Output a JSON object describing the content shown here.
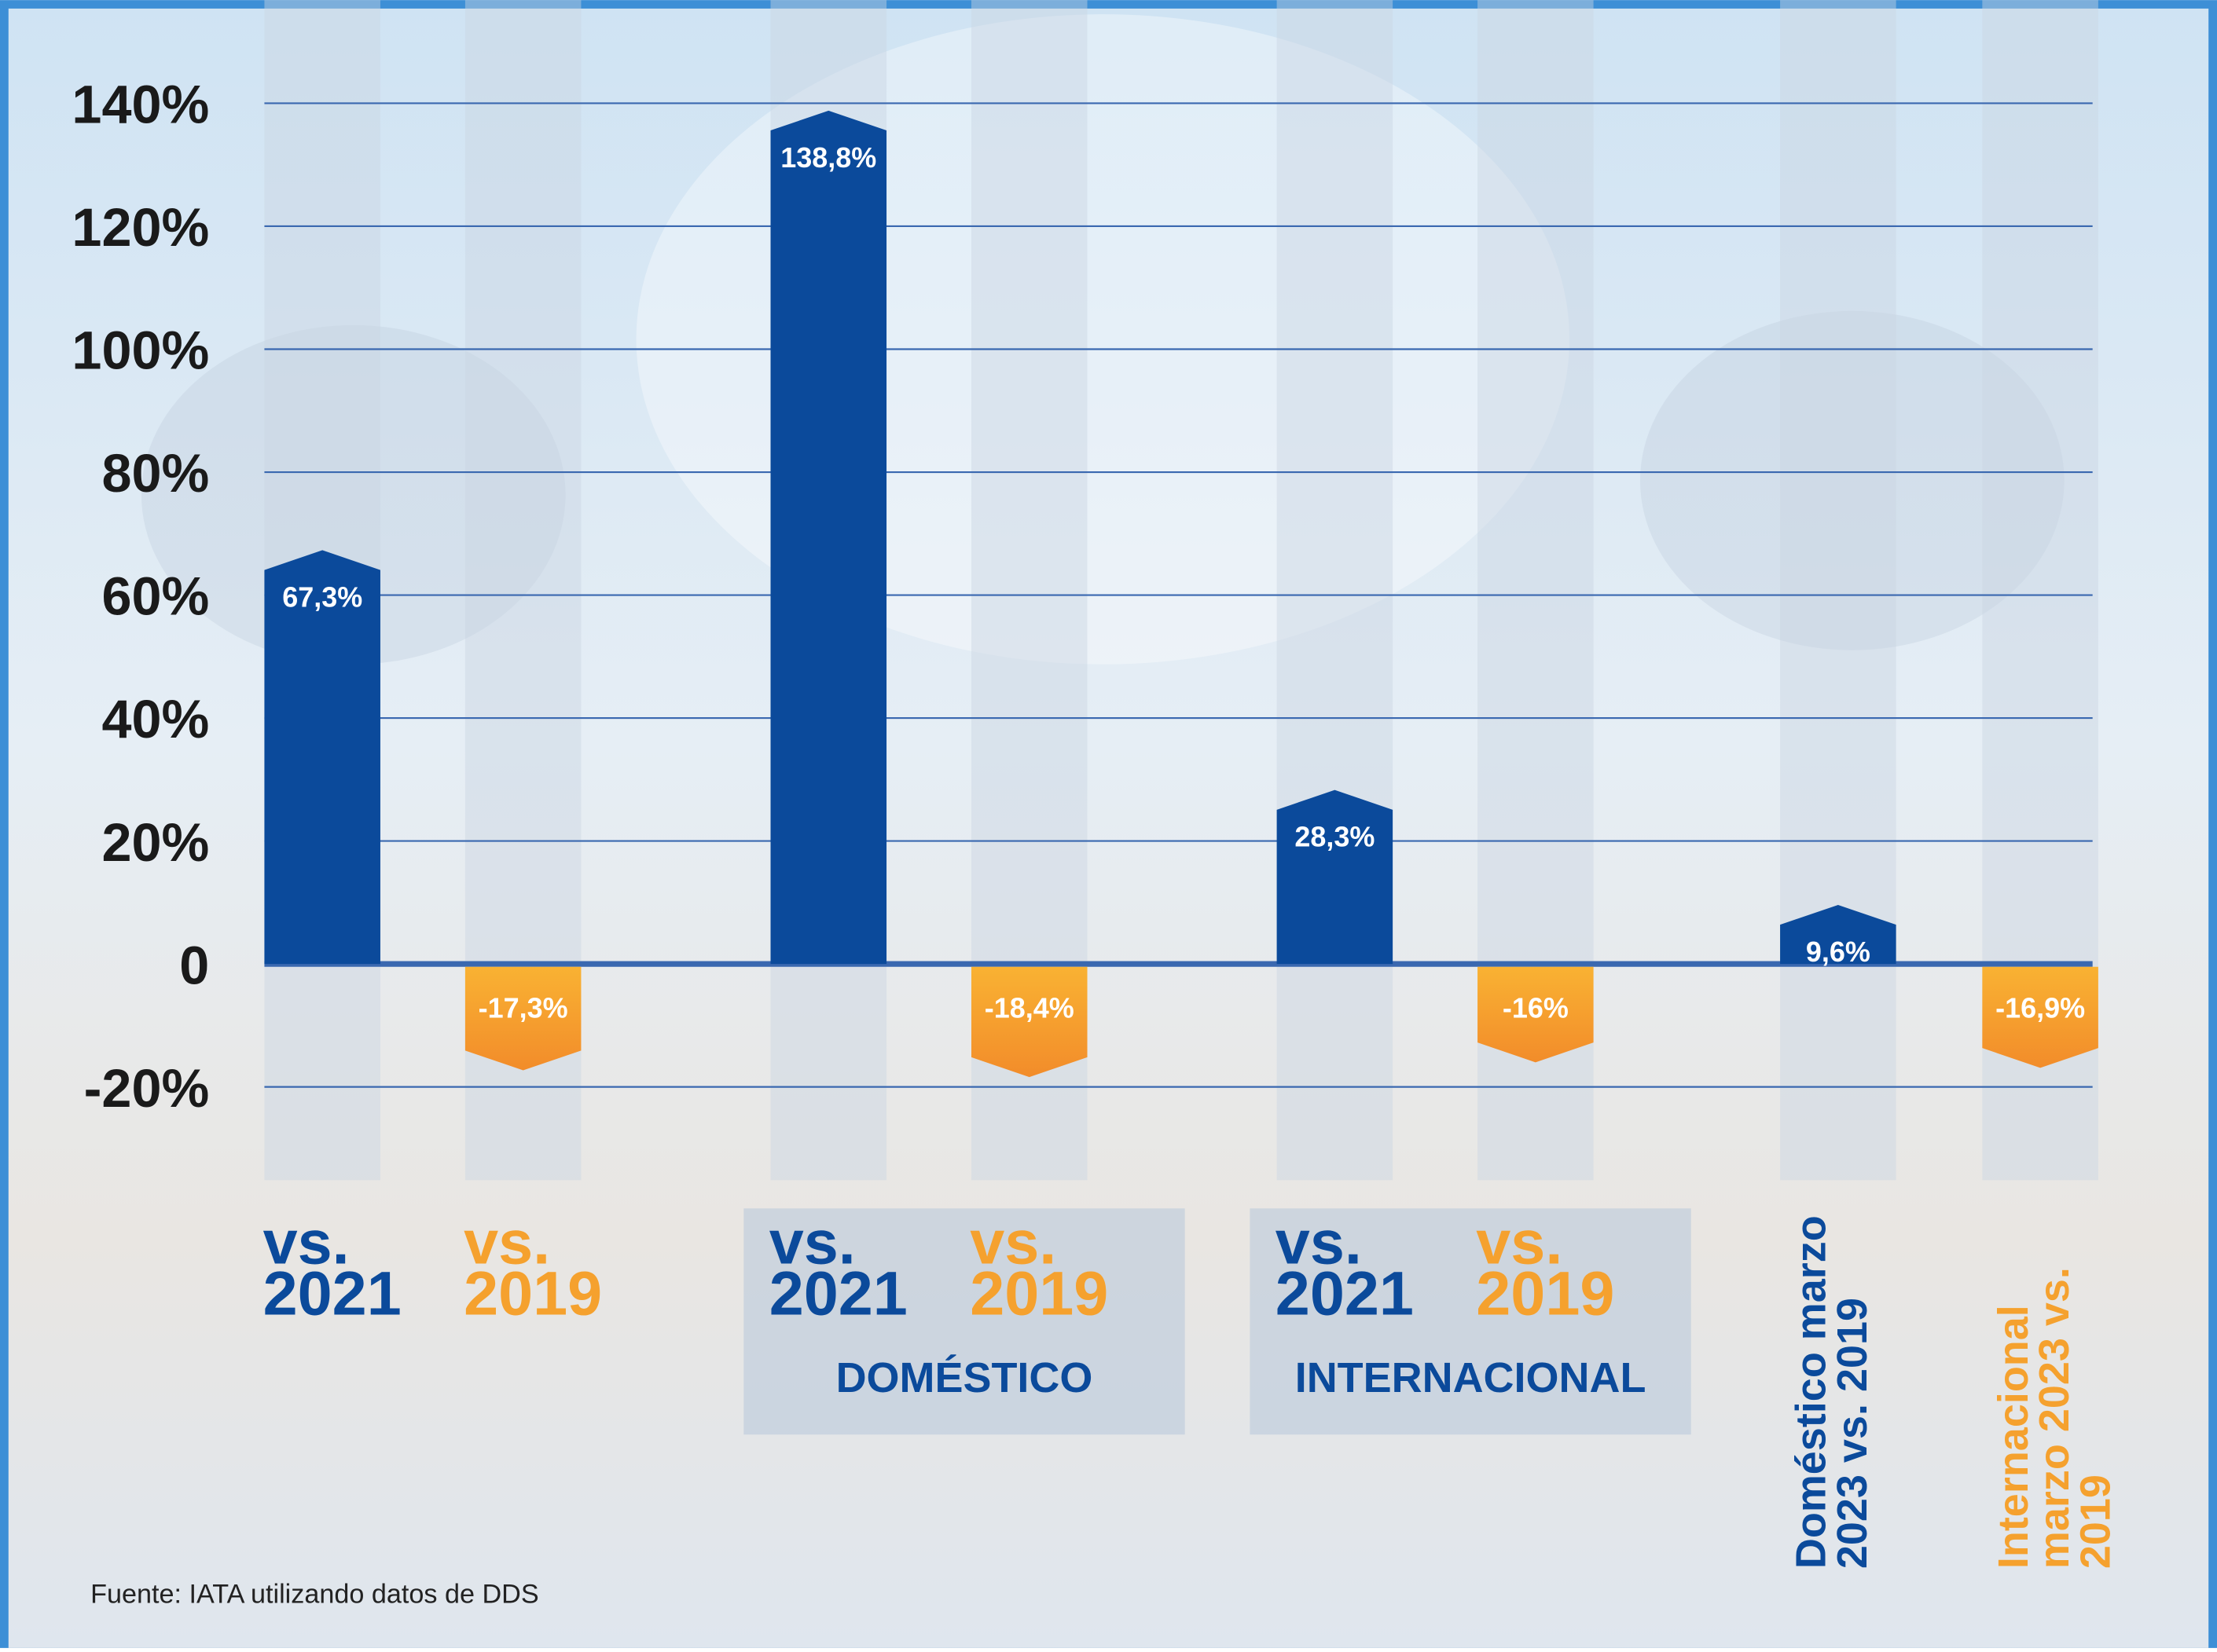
{
  "chart_data": {
    "type": "bar",
    "categories": [
      "vs. 2021",
      "vs. 2019",
      "vs. 2021",
      "vs. 2019",
      "vs. 2021",
      "vs. 2019",
      "Doméstico marzo 2023 vs. 2019",
      "Internacional marzo 2023 vs. 2019"
    ],
    "values": [
      67.3,
      -17.3,
      138.8,
      -18.4,
      28.3,
      -16,
      9.6,
      -16.9
    ],
    "value_labels": [
      "67,3%",
      "-17,3%",
      "138,8%",
      "-18,4%",
      "28,3%",
      "-16%",
      "9,6%",
      "-16,9%"
    ],
    "colors": [
      "#0b4a9b",
      "#f5a12e",
      "#0b4a9b",
      "#f5a12e",
      "#0b4a9b",
      "#f5a12e",
      "#0b4a9b",
      "#f5a12e"
    ],
    "group_labels": [
      "DOMÉSTICO",
      "INTERNACIONAL"
    ],
    "ylim": [
      -35,
      140
    ],
    "yticks": [
      {
        "value": -20,
        "label": "-20%"
      },
      0,
      {
        "value": 20,
        "label": "20%"
      },
      {
        "value": 40,
        "label": "40%"
      },
      {
        "value": 60,
        "label": "60%"
      },
      {
        "value": 80,
        "label": "80%"
      },
      {
        "value": 100,
        "label": "100%"
      },
      {
        "value": 120,
        "label": "120%"
      },
      {
        "value": 140,
        "label": "140%"
      }
    ],
    "grid": true,
    "source": "Fuente: IATA utilizando datos de DDS"
  }
}
